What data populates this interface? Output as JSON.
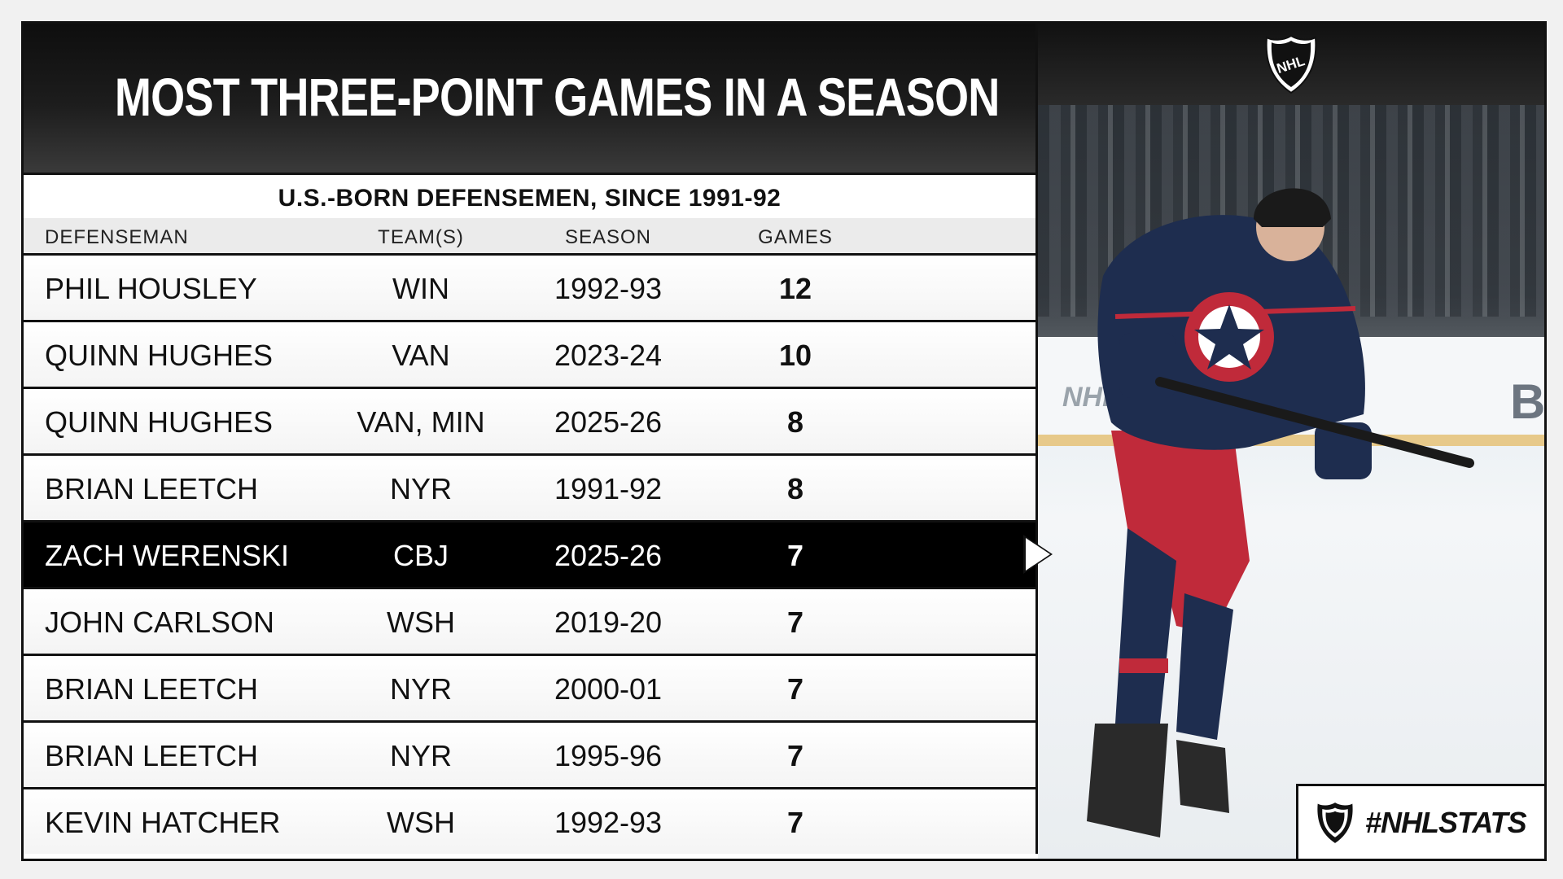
{
  "header": {
    "title": "MOST THREE-POINT GAMES IN A SEASON",
    "subtitle": "U.S.-BORN DEFENSEMEN, SINCE 1991-92"
  },
  "columns": {
    "player": "DEFENSEMAN",
    "team": "TEAM(S)",
    "season": "SEASON",
    "games": "GAMES"
  },
  "rows": [
    {
      "player": "PHIL HOUSLEY",
      "team": "WIN",
      "season": "1992-93",
      "games": "12"
    },
    {
      "player": "QUINN HUGHES",
      "team": "VAN",
      "season": "2023-24",
      "games": "10"
    },
    {
      "player": "QUINN HUGHES",
      "team": "VAN, MIN",
      "season": "2025-26",
      "games": "8"
    },
    {
      "player": "BRIAN LEETCH",
      "team": "NYR",
      "season": "1991-92",
      "games": "8"
    },
    {
      "player": "ZACH WERENSKI",
      "team": "CBJ",
      "season": "2025-26",
      "games": "7",
      "highlighted": true
    },
    {
      "player": "JOHN CARLSON",
      "team": "WSH",
      "season": "2019-20",
      "games": "7"
    },
    {
      "player": "BRIAN LEETCH",
      "team": "NYR",
      "season": "2000-01",
      "games": "7"
    },
    {
      "player": "BRIAN LEETCH",
      "team": "NYR",
      "season": "1995-96",
      "games": "7"
    },
    {
      "player": "KEVIN HATCHER",
      "team": "WSH",
      "season": "1992-93",
      "games": "7"
    }
  ],
  "branding": {
    "logo": "NHL",
    "hashtag": "#NHLSTATS",
    "photo_icon": "hockey-player-photo",
    "highlight_color": "#000000",
    "board_text": "NHL",
    "board_text2": "B"
  }
}
